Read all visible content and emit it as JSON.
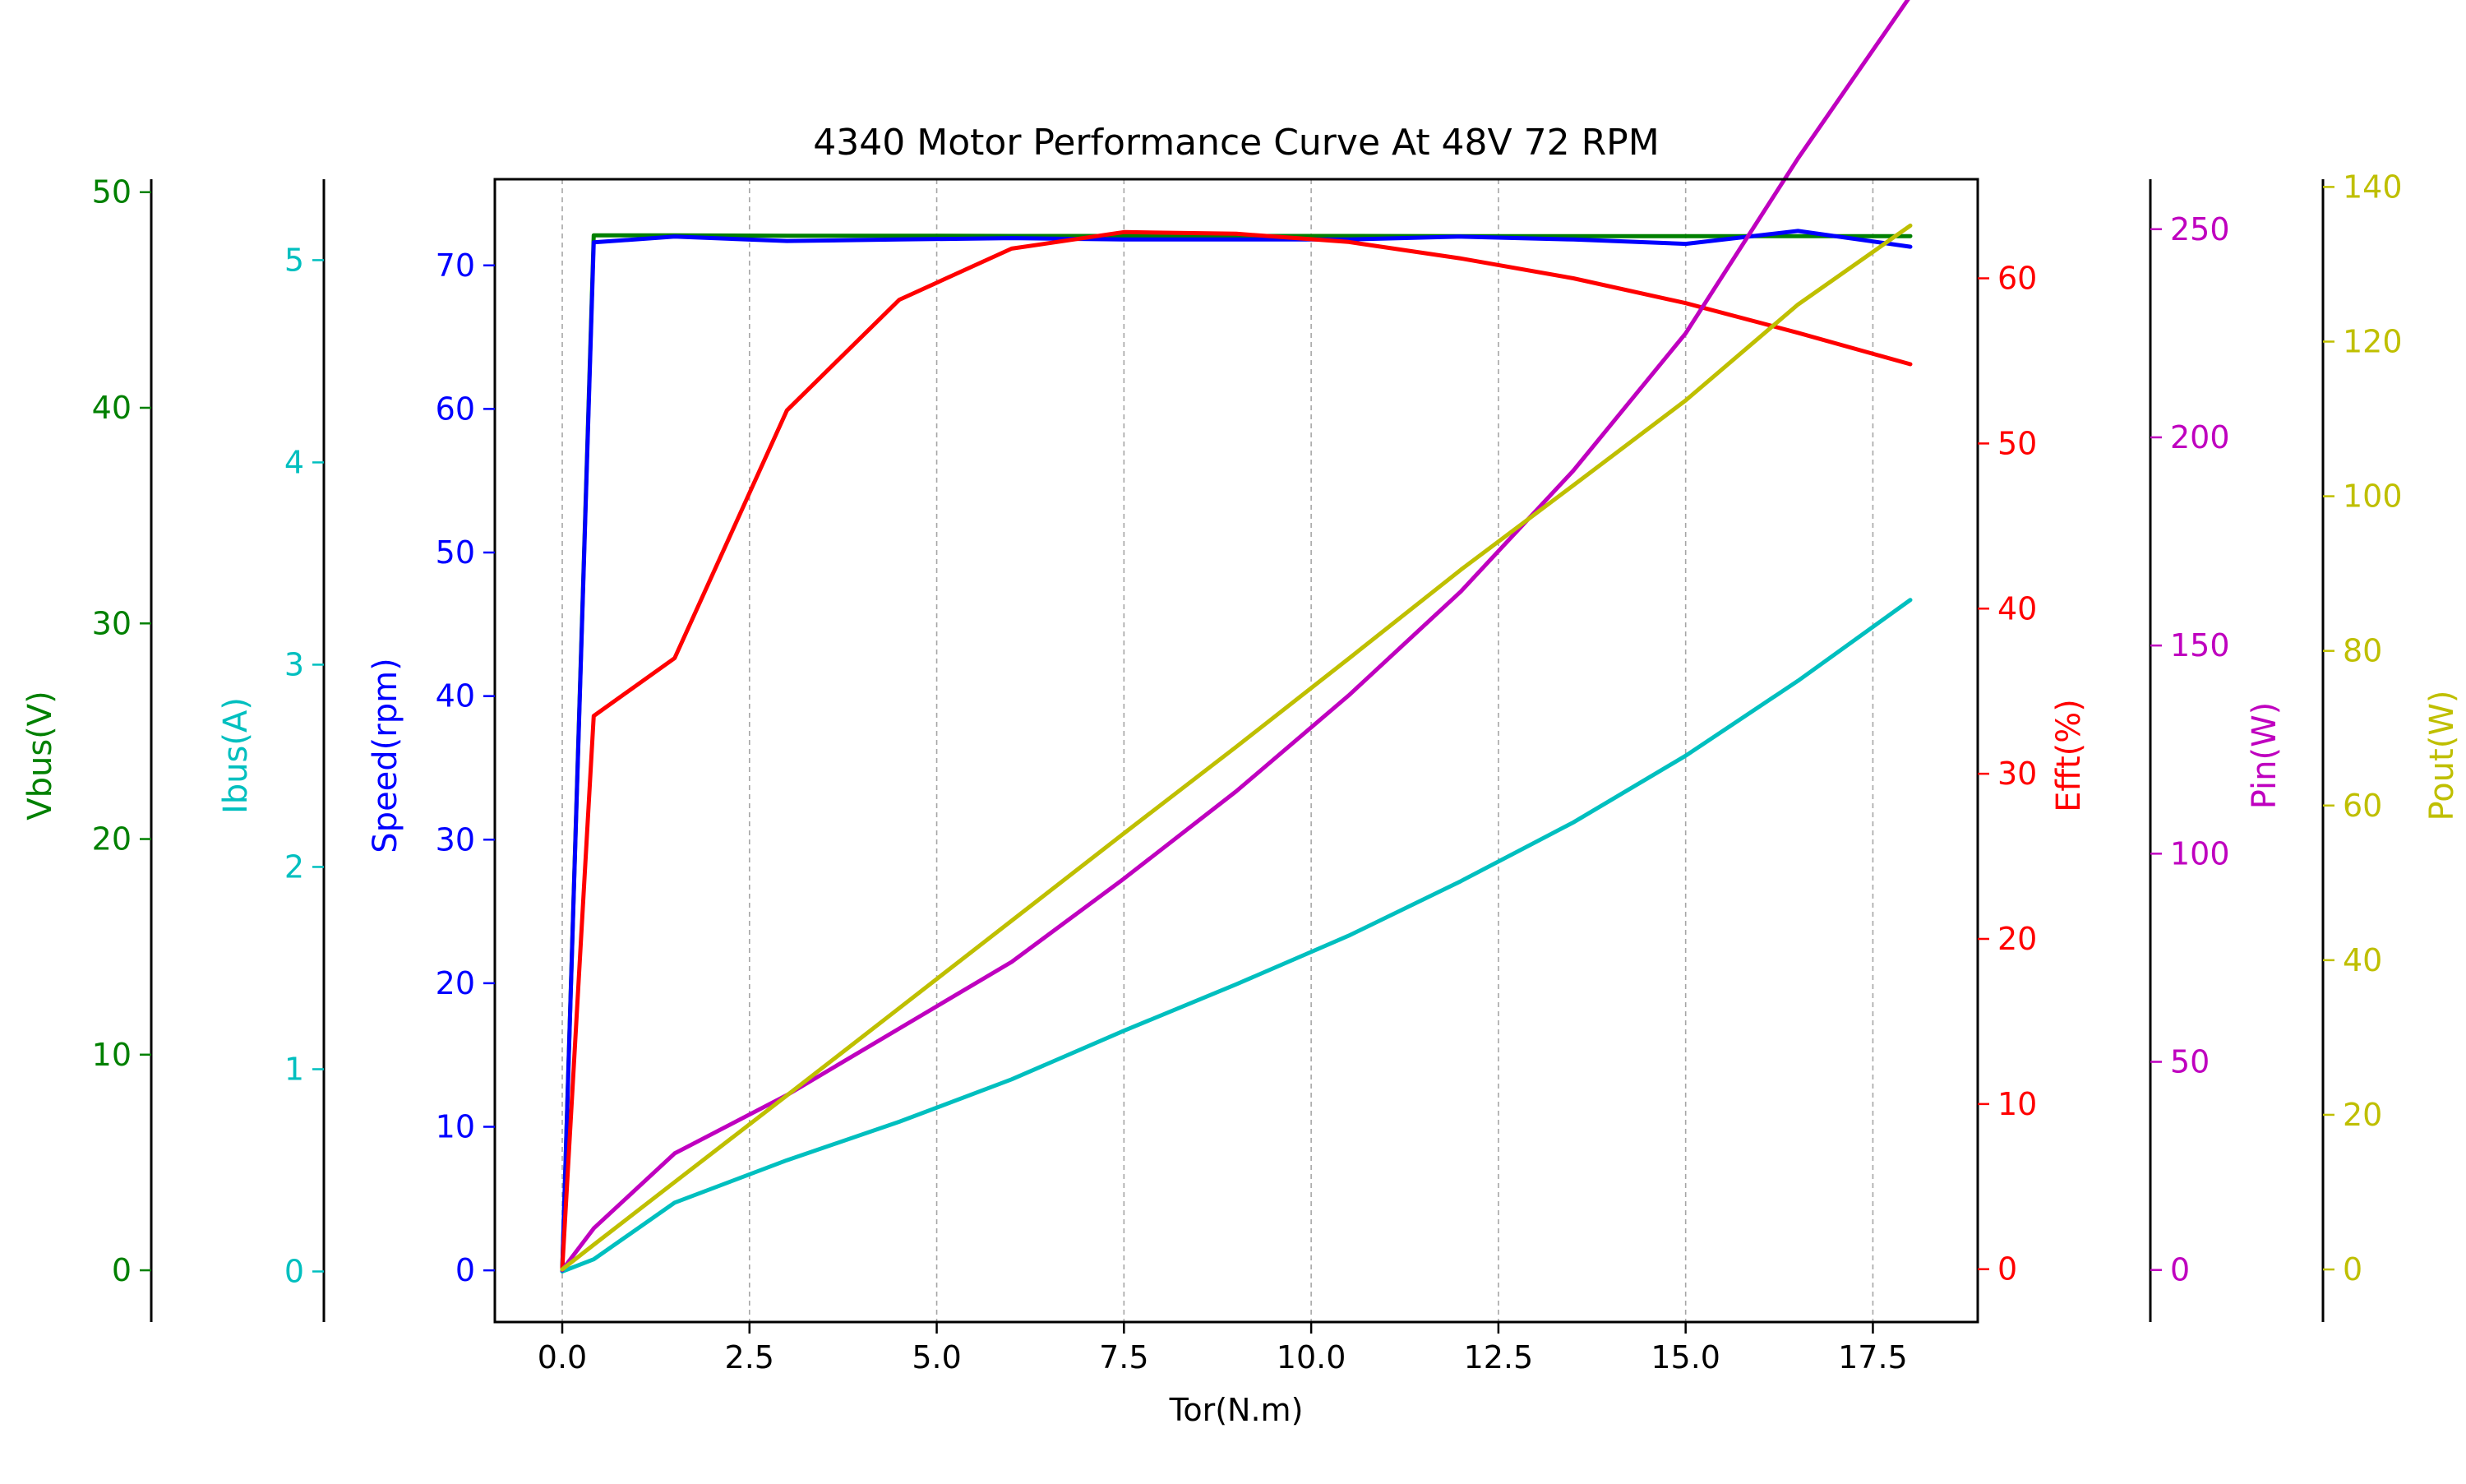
{
  "chart_data": {
    "type": "line",
    "title": "4340 Motor Performance Curve At 48V 72 RPM",
    "xlabel": "Tor(N.m)",
    "xlim": [
      -0.9,
      18.9
    ],
    "xticks": [
      0.0,
      2.5,
      5.0,
      7.5,
      10.0,
      12.5,
      15.0,
      17.5
    ],
    "xtick_labels": [
      "0.0",
      "2.5",
      "5.0",
      "7.5",
      "10.0",
      "12.5",
      "15.0",
      "17.5"
    ],
    "grid": "x-dashed",
    "x": [
      0,
      0.42,
      1.5,
      3.0,
      4.5,
      6.0,
      7.5,
      9.0,
      10.5,
      12.0,
      13.5,
      15.0,
      16.5,
      18.0
    ],
    "axes": [
      {
        "id": "vbus",
        "label": "Vbus(V)",
        "side": "left",
        "color": "#008000",
        "ylim": [
          -2.4,
          50.6
        ],
        "ticks": [
          0,
          10,
          20,
          30,
          40,
          50
        ]
      },
      {
        "id": "ibus",
        "label": "Ibus(A)",
        "side": "left",
        "color": "#00bfbf",
        "ylim": [
          -0.25,
          5.4
        ],
        "ticks": [
          0,
          1,
          2,
          3,
          4,
          5
        ]
      },
      {
        "id": "speed",
        "label": "Speed(rpm)",
        "side": "left",
        "color": "#0000ff",
        "ylim": [
          -3.6,
          76
        ],
        "ticks": [
          0,
          10,
          20,
          30,
          40,
          50,
          60,
          70
        ]
      },
      {
        "id": "efft",
        "label": "Efft(%)",
        "side": "right",
        "color": "#ff0000",
        "ylim": [
          -3.2,
          66
        ],
        "ticks": [
          0,
          10,
          20,
          30,
          40,
          50,
          60
        ]
      },
      {
        "id": "pin",
        "label": "Pin(W)",
        "side": "right",
        "color": "#bf00bf",
        "ylim": [
          -12.5,
          262
        ],
        "ticks": [
          0,
          50,
          100,
          150,
          200,
          250
        ]
      },
      {
        "id": "pout",
        "label": "Pout(W)",
        "side": "right",
        "color": "#bfbf00",
        "ylim": [
          -6.8,
          141
        ],
        "ticks": [
          0,
          20,
          40,
          60,
          80,
          100,
          120,
          140
        ]
      }
    ],
    "series": [
      {
        "axis": "vbus",
        "color": "#008000",
        "values": [
          0,
          48.0,
          48.0,
          47.98,
          47.98,
          47.97,
          47.97,
          47.97,
          47.97,
          47.96,
          47.96,
          47.96,
          47.96,
          47.96
        ]
      },
      {
        "axis": "ibus",
        "color": "#00bfbf",
        "values": [
          0,
          0.06,
          0.34,
          0.55,
          0.74,
          0.95,
          1.19,
          1.42,
          1.66,
          1.93,
          2.22,
          2.55,
          2.92,
          3.32
        ]
      },
      {
        "axis": "speed",
        "color": "#0000ff",
        "values": [
          0,
          71.6,
          72.0,
          71.7,
          71.8,
          71.9,
          71.8,
          71.8,
          71.8,
          72.0,
          71.8,
          71.5,
          72.4,
          71.3
        ]
      },
      {
        "axis": "efft",
        "color": "#ff0000",
        "values": [
          0,
          33.5,
          37.0,
          52.0,
          58.7,
          61.8,
          62.8,
          62.7,
          62.2,
          61.2,
          60.0,
          58.5,
          56.7,
          54.8
        ]
      },
      {
        "axis": "pin",
        "color": "#bf00bf",
        "values": [
          0,
          10,
          28,
          42,
          58,
          74,
          94,
          115,
          138,
          163,
          192,
          225,
          267,
          306
        ]
      },
      {
        "axis": "pout",
        "color": "#bfbf00",
        "values": [
          0,
          3.2,
          11.3,
          22.5,
          33.8,
          45.1,
          56.4,
          67.6,
          79.0,
          90.5,
          101.4,
          112.4,
          124.8,
          135.0
        ]
      }
    ]
  }
}
